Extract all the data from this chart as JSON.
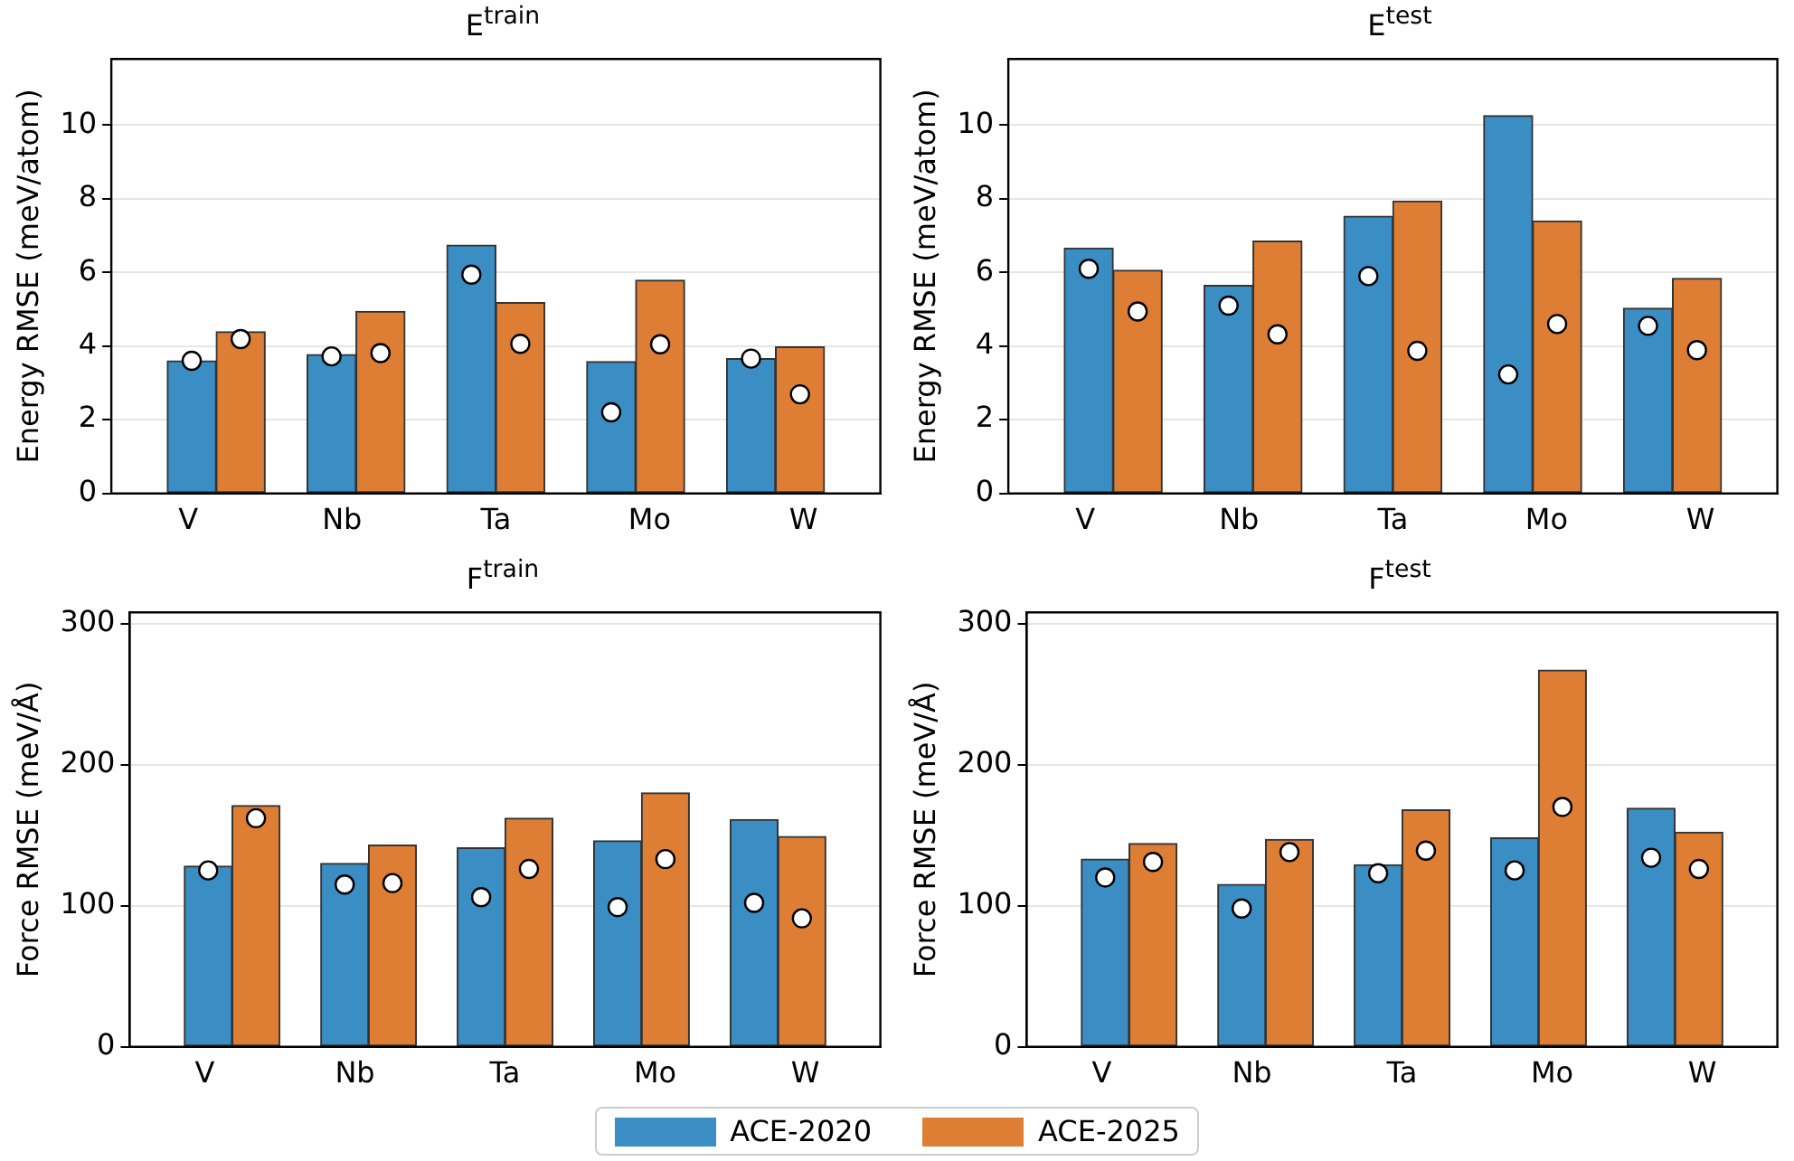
{
  "chart_data": [
    {
      "type": "bar",
      "title": "E$^{train}$",
      "ylabel": "Energy RMSE (meV/atom)",
      "categories": [
        "V",
        "Nb",
        "Ta",
        "Mo",
        "W"
      ],
      "series": [
        {
          "name": "ACE-2020",
          "color": "#3a8ec4",
          "values": [
            3.6,
            3.77,
            6.74,
            3.58,
            3.66
          ]
        },
        {
          "name": "ACE-2025",
          "color": "#de7e34",
          "values": [
            4.39,
            4.94,
            5.18,
            5.79,
            3.98
          ]
        },
        {
          "type": "scatter",
          "color": "#ffffff",
          "x": [
            "V",
            "Nb",
            "Ta",
            "Mo",
            "W"
          ],
          "values": [
            3.6,
            3.72,
            5.94,
            2.2,
            3.66
          ]
        },
        {
          "type": "scatter",
          "color": "#ffffff",
          "x": [
            "V",
            "Nb",
            "Ta",
            "Mo",
            "W"
          ],
          "values": [
            4.19,
            3.81,
            4.06,
            4.05,
            2.69
          ]
        }
      ],
      "ylim": [
        0,
        11.8
      ],
      "yticks": [
        0,
        2,
        4,
        6,
        8,
        10
      ],
      "grid": "y",
      "legend": "bottom",
      "marker": "circle"
    },
    {
      "type": "bar",
      "title": "E$^{test}$",
      "ylabel": "Energy RMSE (meV/atom)",
      "categories": [
        "V",
        "Nb",
        "Ta",
        "Mo",
        "W"
      ],
      "series": [
        {
          "name": "ACE-2020",
          "color": "#3a8ec4",
          "values": [
            6.66,
            5.65,
            7.53,
            10.26,
            5.03
          ]
        },
        {
          "name": "ACE-2025",
          "color": "#de7e34",
          "values": [
            6.06,
            6.85,
            7.94,
            7.4,
            5.84
          ]
        },
        {
          "type": "scatter",
          "color": "#ffffff",
          "x": [
            "V",
            "Nb",
            "Ta",
            "Mo",
            "W"
          ],
          "values": [
            6.1,
            5.1,
            5.9,
            3.23,
            4.55
          ]
        },
        {
          "type": "scatter",
          "color": "#ffffff",
          "x": [
            "V",
            "Nb",
            "Ta",
            "Mo",
            "W"
          ],
          "values": [
            4.94,
            4.32,
            3.87,
            4.6,
            3.89
          ]
        }
      ],
      "ylim": [
        0,
        11.8
      ],
      "yticks": [
        0,
        2,
        4,
        6,
        8,
        10
      ],
      "grid": "y",
      "legend": "bottom",
      "marker": "circle"
    },
    {
      "type": "bar",
      "title": "F$^{train}$",
      "ylabel": "Force RMSE (meV/Å)",
      "categories": [
        "V",
        "Nb",
        "Ta",
        "Mo",
        "W"
      ],
      "series": [
        {
          "name": "ACE-2020",
          "color": "#3a8ec4",
          "values": [
            128,
            130,
            141,
            146,
            161
          ]
        },
        {
          "name": "ACE-2025",
          "color": "#de7e34",
          "values": [
            171,
            143,
            162,
            180,
            149
          ]
        },
        {
          "type": "scatter",
          "color": "#ffffff",
          "x": [
            "V",
            "Nb",
            "Ta",
            "Mo",
            "W"
          ],
          "values": [
            125,
            115,
            106,
            99,
            102
          ]
        },
        {
          "type": "scatter",
          "color": "#ffffff",
          "x": [
            "V",
            "Nb",
            "Ta",
            "Mo",
            "W"
          ],
          "values": [
            162,
            116,
            126,
            133,
            91
          ]
        }
      ],
      "ylim": [
        0,
        308
      ],
      "yticks": [
        0,
        100,
        200,
        300
      ],
      "grid": "y",
      "legend": "bottom",
      "marker": "circle"
    },
    {
      "type": "bar",
      "title": "F$^{test}$",
      "ylabel": "Force RMSE (meV/Å)",
      "categories": [
        "V",
        "Nb",
        "Ta",
        "Mo",
        "W"
      ],
      "series": [
        {
          "name": "ACE-2020",
          "color": "#3a8ec4",
          "values": [
            133,
            115,
            129,
            148,
            169
          ]
        },
        {
          "name": "ACE-2025",
          "color": "#de7e34",
          "values": [
            144,
            147,
            168,
            267,
            152
          ]
        },
        {
          "type": "scatter",
          "color": "#ffffff",
          "x": [
            "V",
            "Nb",
            "Ta",
            "Mo",
            "W"
          ],
          "values": [
            120,
            98,
            123,
            125,
            134
          ]
        },
        {
          "type": "scatter",
          "color": "#ffffff",
          "x": [
            "V",
            "Nb",
            "Ta",
            "Mo",
            "W"
          ],
          "values": [
            131,
            138,
            139,
            170,
            126
          ]
        }
      ],
      "ylim": [
        0,
        308
      ],
      "yticks": [
        0,
        100,
        200,
        300
      ],
      "grid": "y",
      "legend": "bottom",
      "marker": "circle"
    }
  ]
}
